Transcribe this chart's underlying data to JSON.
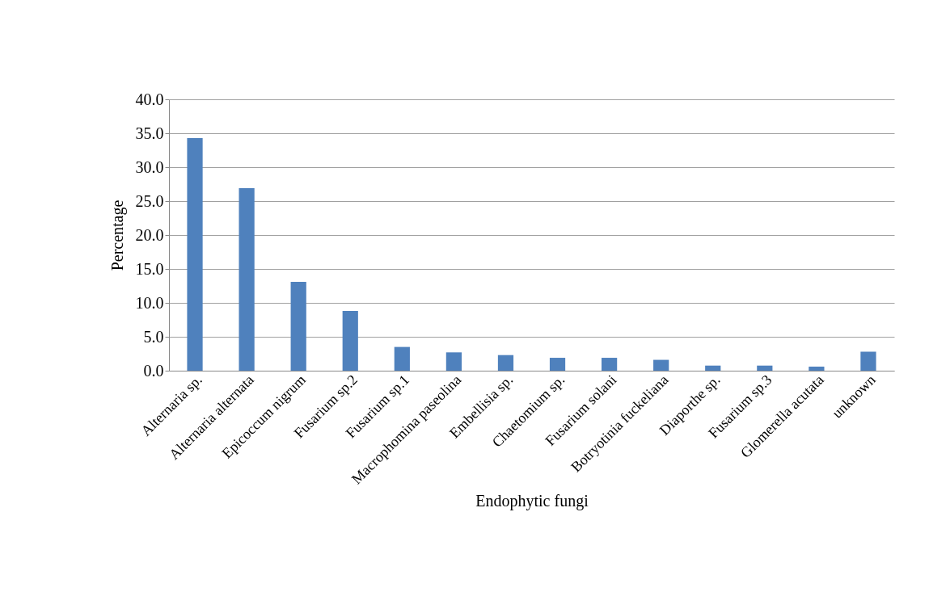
{
  "chart_data": {
    "type": "bar",
    "xlabel": "Endophytic fungi",
    "ylabel": "Percentage",
    "categories": [
      "Alternaria sp.",
      "Alternaria alternata",
      "Epicoccum nigrum",
      "Fusarium sp.2",
      "Fusarium sp.1",
      "Macrophomina paseolina",
      "Embellisia sp.",
      "Chaetomium sp.",
      "Fusarium solani",
      "Botryotinia fuckeliana",
      "Diaporthe sp.",
      "Fusarium sp.3",
      "Glomerella acutata",
      "unknown"
    ],
    "values": [
      34.3,
      26.9,
      13.1,
      8.8,
      3.5,
      2.7,
      2.3,
      1.9,
      1.9,
      1.6,
      0.75,
      0.75,
      0.6,
      2.8
    ],
    "color": "#4f81bd",
    "ylim": [
      0,
      40
    ],
    "yticks": [
      {
        "value": 0,
        "label": "0.0"
      },
      {
        "value": 5,
        "label": "5.0"
      },
      {
        "value": 10,
        "label": "10.0"
      },
      {
        "value": 15,
        "label": "15.0"
      },
      {
        "value": 20,
        "label": "20.0"
      },
      {
        "value": 25,
        "label": "25.0"
      },
      {
        "value": 30,
        "label": "30.0"
      },
      {
        "value": 35,
        "label": "35.0"
      },
      {
        "value": 40,
        "label": "40.0"
      }
    ],
    "grid": "y"
  }
}
